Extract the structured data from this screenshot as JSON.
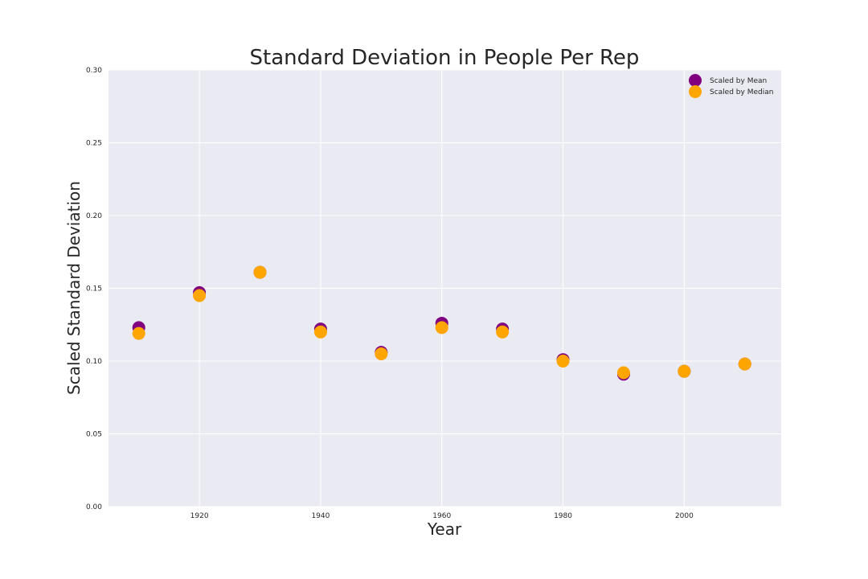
{
  "chart_data": {
    "type": "scatter",
    "title": "Standard Deviation in People Per Rep",
    "xlabel": "Year",
    "ylabel": "Scaled Standard Deviation",
    "xlim": [
      1905,
      2016
    ],
    "ylim": [
      0.0,
      0.3
    ],
    "x_ticks": [
      1920,
      1940,
      1960,
      1980,
      2000
    ],
    "y_ticks": [
      0.0,
      0.05,
      0.1,
      0.15,
      0.2,
      0.25,
      0.3
    ],
    "x_tick_labels": [
      "1920",
      "1940",
      "1960",
      "1980",
      "2000"
    ],
    "y_tick_labels": [
      "0.00",
      "0.05",
      "0.10",
      "0.15",
      "0.20",
      "0.25",
      "0.30"
    ],
    "grid": true,
    "legend_position": "top-right",
    "x": [
      1910,
      1920,
      1930,
      1940,
      1950,
      1960,
      1970,
      1980,
      1990,
      2000,
      2010
    ],
    "series": [
      {
        "name": "Scaled by Mean",
        "color": "#800080",
        "values": [
          0.123,
          0.147,
          0.161,
          0.122,
          0.106,
          0.126,
          0.122,
          0.101,
          0.091,
          0.093,
          0.098
        ]
      },
      {
        "name": "Scaled by Median",
        "color": "#FFA500",
        "values": [
          0.119,
          0.145,
          0.161,
          0.12,
          0.105,
          0.123,
          0.12,
          0.1,
          0.092,
          0.093,
          0.098
        ]
      }
    ]
  }
}
